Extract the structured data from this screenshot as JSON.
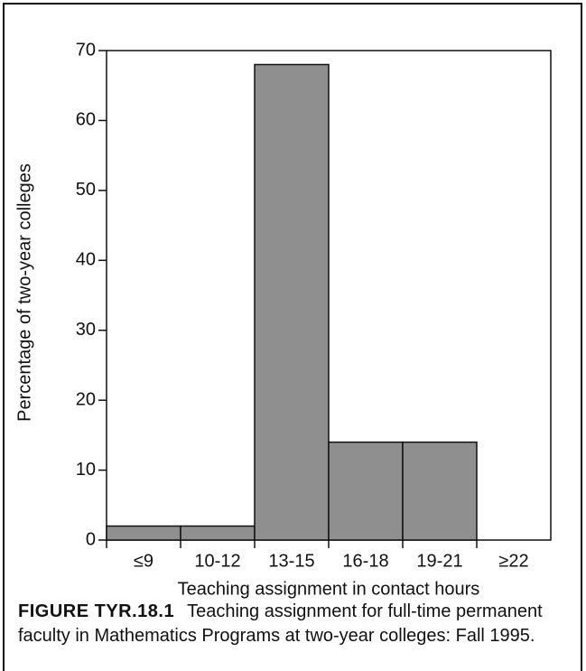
{
  "chart_data": {
    "type": "bar",
    "xlabel": "Teaching assignment in contact hours",
    "ylabel": "Percentage of two-year colleges",
    "categories": [
      "≤9",
      "10-12",
      "13-15",
      "16-18",
      "19-21",
      "≥22"
    ],
    "values": [
      2,
      2,
      68,
      14,
      14,
      0
    ],
    "color": "#8f8f8f",
    "ylim": [
      0,
      70
    ],
    "yticks": [
      0,
      10,
      20,
      30,
      40,
      50,
      60,
      70
    ]
  },
  "caption": {
    "label": "FIGURE TYR.18.1",
    "text": "Teaching assignment for full-time permanent faculty in Mathematics Programs at two-year colleges: Fall 1995."
  }
}
